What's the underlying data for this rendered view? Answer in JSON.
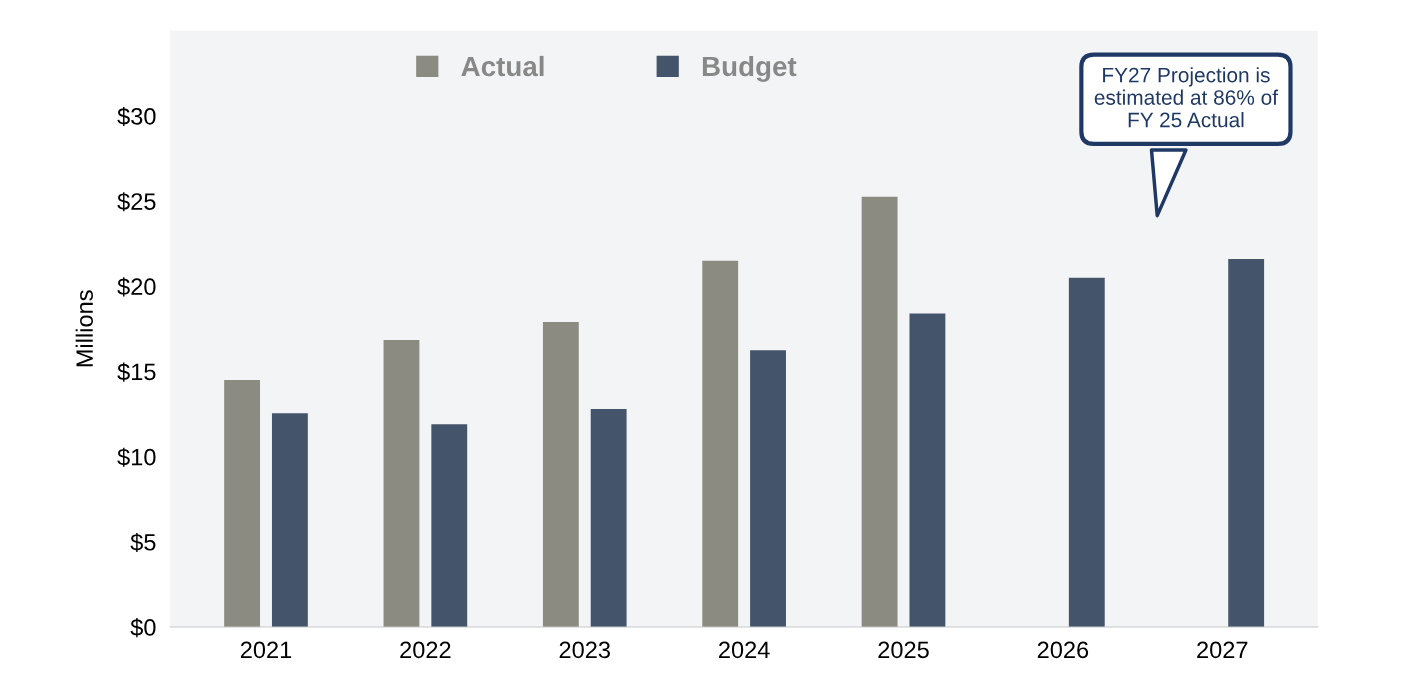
{
  "chart_data": {
    "type": "bar",
    "ylabel": "Millions",
    "categories": [
      "2021",
      "2022",
      "2023",
      "2024",
      "2025",
      "2026",
      "2027"
    ],
    "series": [
      {
        "name": "Actual",
        "color": "#8b8b82",
        "values": [
          14.5,
          16.85,
          17.9,
          21.5,
          25.25,
          null,
          null
        ]
      },
      {
        "name": "Budget",
        "color": "#44546a",
        "values": [
          12.55,
          11.9,
          12.8,
          16.25,
          18.4,
          20.5,
          21.6
        ]
      }
    ],
    "ylim": [
      0,
      35
    ],
    "yticks": [
      {
        "value": 0,
        "label": "$0"
      },
      {
        "value": 5,
        "label": "$5"
      },
      {
        "value": 10,
        "label": "$10"
      },
      {
        "value": 15,
        "label": "$15"
      },
      {
        "value": 20,
        "label": "$20"
      },
      {
        "value": 25,
        "label": "$25"
      },
      {
        "value": 30,
        "label": "$30"
      }
    ],
    "annotations": [
      "FY27 Projection is\nestimated at 86% of\nFY 25 Actual"
    ],
    "legend": "top",
    "grid": false
  }
}
